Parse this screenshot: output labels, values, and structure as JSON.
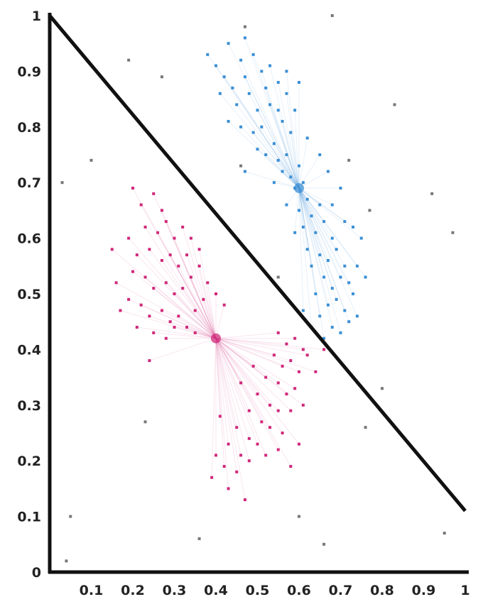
{
  "chart_data": {
    "type": "scatter",
    "title": "",
    "xlabel": "",
    "ylabel": "",
    "xlim": [
      0,
      1
    ],
    "ylim": [
      0,
      1
    ],
    "grid": false,
    "x_ticks": [
      "0.1",
      "0.2",
      "0.3",
      "0.4",
      "0.5",
      "0.6",
      "0.7",
      "0.8",
      "0.9",
      "1"
    ],
    "y_ticks": [
      "0",
      "0.1",
      "0.2",
      "0.3",
      "0.4",
      "0.5",
      "0.6",
      "0.7",
      "0.8",
      "0.9",
      "1"
    ],
    "divider_line": {
      "x": [
        0,
        1
      ],
      "y": [
        1,
        0.11
      ],
      "color": "#111111"
    },
    "series": [
      {
        "color": "#3b8fd4",
        "center": [
          0.6,
          0.69
        ],
        "points": [
          [
            0.38,
            0.93
          ],
          [
            0.4,
            0.91
          ],
          [
            0.43,
            0.95
          ],
          [
            0.44,
            0.87
          ],
          [
            0.46,
            0.92
          ],
          [
            0.47,
            0.89
          ],
          [
            0.49,
            0.93
          ],
          [
            0.51,
            0.9
          ],
          [
            0.52,
            0.87
          ],
          [
            0.55,
            0.88
          ],
          [
            0.57,
            0.86
          ],
          [
            0.59,
            0.83
          ],
          [
            0.41,
            0.86
          ],
          [
            0.45,
            0.84
          ],
          [
            0.48,
            0.86
          ],
          [
            0.5,
            0.83
          ],
          [
            0.53,
            0.84
          ],
          [
            0.56,
            0.81
          ],
          [
            0.58,
            0.79
          ],
          [
            0.43,
            0.81
          ],
          [
            0.46,
            0.8
          ],
          [
            0.49,
            0.79
          ],
          [
            0.51,
            0.8
          ],
          [
            0.54,
            0.77
          ],
          [
            0.52,
            0.75
          ],
          [
            0.55,
            0.74
          ],
          [
            0.57,
            0.75
          ],
          [
            0.56,
            0.72
          ],
          [
            0.58,
            0.71
          ],
          [
            0.6,
            0.73
          ],
          [
            0.59,
            0.69
          ],
          [
            0.61,
            0.7
          ],
          [
            0.62,
            0.67
          ],
          [
            0.6,
            0.65
          ],
          [
            0.63,
            0.64
          ],
          [
            0.65,
            0.66
          ],
          [
            0.61,
            0.62
          ],
          [
            0.64,
            0.61
          ],
          [
            0.66,
            0.63
          ],
          [
            0.68,
            0.6
          ],
          [
            0.62,
            0.58
          ],
          [
            0.65,
            0.57
          ],
          [
            0.67,
            0.56
          ],
          [
            0.69,
            0.58
          ],
          [
            0.71,
            0.55
          ],
          [
            0.63,
            0.55
          ],
          [
            0.66,
            0.53
          ],
          [
            0.68,
            0.51
          ],
          [
            0.7,
            0.53
          ],
          [
            0.72,
            0.52
          ],
          [
            0.64,
            0.5
          ],
          [
            0.67,
            0.48
          ],
          [
            0.69,
            0.49
          ],
          [
            0.71,
            0.47
          ],
          [
            0.73,
            0.5
          ],
          [
            0.61,
            0.47
          ],
          [
            0.65,
            0.46
          ],
          [
            0.68,
            0.44
          ],
          [
            0.7,
            0.43
          ],
          [
            0.72,
            0.45
          ],
          [
            0.74,
            0.55
          ],
          [
            0.75,
            0.6
          ],
          [
            0.73,
            0.62
          ],
          [
            0.62,
            0.78
          ],
          [
            0.65,
            0.75
          ],
          [
            0.67,
            0.72
          ],
          [
            0.7,
            0.69
          ],
          [
            0.55,
            0.83
          ],
          [
            0.53,
            0.91
          ],
          [
            0.47,
            0.96
          ],
          [
            0.42,
            0.89
          ],
          [
            0.57,
            0.9
          ],
          [
            0.6,
            0.88
          ],
          [
            0.5,
            0.76
          ],
          [
            0.47,
            0.72
          ],
          [
            0.66,
            0.42
          ],
          [
            0.63,
            0.44
          ],
          [
            0.74,
            0.46
          ],
          [
            0.59,
            0.61
          ],
          [
            0.57,
            0.66
          ],
          [
            0.54,
            0.7
          ],
          [
            0.71,
            0.63
          ],
          [
            0.68,
            0.66
          ],
          [
            0.76,
            0.53
          ]
        ]
      },
      {
        "color": "#d0287a",
        "center": [
          0.4,
          0.42
        ],
        "points": [
          [
            0.2,
            0.69
          ],
          [
            0.22,
            0.66
          ],
          [
            0.25,
            0.68
          ],
          [
            0.27,
            0.65
          ],
          [
            0.23,
            0.62
          ],
          [
            0.26,
            0.61
          ],
          [
            0.28,
            0.63
          ],
          [
            0.3,
            0.6
          ],
          [
            0.32,
            0.62
          ],
          [
            0.19,
            0.6
          ],
          [
            0.21,
            0.57
          ],
          [
            0.24,
            0.58
          ],
          [
            0.27,
            0.56
          ],
          [
            0.29,
            0.57
          ],
          [
            0.31,
            0.55
          ],
          [
            0.33,
            0.57
          ],
          [
            0.2,
            0.54
          ],
          [
            0.23,
            0.53
          ],
          [
            0.25,
            0.51
          ],
          [
            0.28,
            0.52
          ],
          [
            0.3,
            0.5
          ],
          [
            0.32,
            0.51
          ],
          [
            0.34,
            0.53
          ],
          [
            0.36,
            0.55
          ],
          [
            0.19,
            0.49
          ],
          [
            0.22,
            0.48
          ],
          [
            0.24,
            0.46
          ],
          [
            0.27,
            0.47
          ],
          [
            0.29,
            0.45
          ],
          [
            0.31,
            0.46
          ],
          [
            0.33,
            0.44
          ],
          [
            0.35,
            0.47
          ],
          [
            0.37,
            0.49
          ],
          [
            0.21,
            0.44
          ],
          [
            0.25,
            0.43
          ],
          [
            0.28,
            0.42
          ],
          [
            0.3,
            0.44
          ],
          [
            0.38,
            0.52
          ],
          [
            0.15,
            0.58
          ],
          [
            0.16,
            0.52
          ],
          [
            0.17,
            0.47
          ],
          [
            0.34,
            0.6
          ],
          [
            0.36,
            0.58
          ],
          [
            0.4,
            0.5
          ],
          [
            0.42,
            0.48
          ],
          [
            0.55,
            0.43
          ],
          [
            0.57,
            0.41
          ],
          [
            0.59,
            0.42
          ],
          [
            0.61,
            0.4
          ],
          [
            0.54,
            0.39
          ],
          [
            0.56,
            0.37
          ],
          [
            0.58,
            0.38
          ],
          [
            0.6,
            0.36
          ],
          [
            0.62,
            0.39
          ],
          [
            0.52,
            0.35
          ],
          [
            0.55,
            0.34
          ],
          [
            0.57,
            0.32
          ],
          [
            0.59,
            0.33
          ],
          [
            0.5,
            0.32
          ],
          [
            0.53,
            0.3
          ],
          [
            0.55,
            0.29
          ],
          [
            0.48,
            0.29
          ],
          [
            0.51,
            0.27
          ],
          [
            0.53,
            0.26
          ],
          [
            0.56,
            0.25
          ],
          [
            0.45,
            0.26
          ],
          [
            0.48,
            0.24
          ],
          [
            0.5,
            0.23
          ],
          [
            0.43,
            0.23
          ],
          [
            0.46,
            0.21
          ],
          [
            0.48,
            0.2
          ],
          [
            0.52,
            0.21
          ],
          [
            0.55,
            0.22
          ],
          [
            0.4,
            0.21
          ],
          [
            0.42,
            0.19
          ],
          [
            0.45,
            0.18
          ],
          [
            0.39,
            0.17
          ],
          [
            0.43,
            0.15
          ],
          [
            0.47,
            0.13
          ],
          [
            0.58,
            0.19
          ],
          [
            0.6,
            0.23
          ],
          [
            0.64,
            0.36
          ],
          [
            0.66,
            0.4
          ],
          [
            0.46,
            0.34
          ],
          [
            0.49,
            0.37
          ],
          [
            0.58,
            0.29
          ],
          [
            0.61,
            0.3
          ],
          [
            0.41,
            0.28
          ],
          [
            0.24,
            0.38
          ],
          [
            0.35,
            0.43
          ]
        ]
      },
      {
        "color": "#777777",
        "points": [
          [
            0.47,
            0.98
          ],
          [
            0.68,
            1.0
          ],
          [
            0.19,
            0.92
          ],
          [
            0.27,
            0.89
          ],
          [
            0.83,
            0.84
          ],
          [
            0.1,
            0.74
          ],
          [
            0.03,
            0.7
          ],
          [
            0.92,
            0.68
          ],
          [
            0.97,
            0.61
          ],
          [
            0.46,
            0.73
          ],
          [
            0.77,
            0.65
          ],
          [
            0.55,
            0.53
          ],
          [
            0.8,
            0.33
          ],
          [
            0.76,
            0.26
          ],
          [
            0.23,
            0.27
          ],
          [
            0.05,
            0.1
          ],
          [
            0.04,
            0.02
          ],
          [
            0.36,
            0.06
          ],
          [
            0.6,
            0.1
          ],
          [
            0.66,
            0.05
          ],
          [
            0.95,
            0.07
          ],
          [
            0.72,
            0.74
          ]
        ]
      }
    ]
  }
}
